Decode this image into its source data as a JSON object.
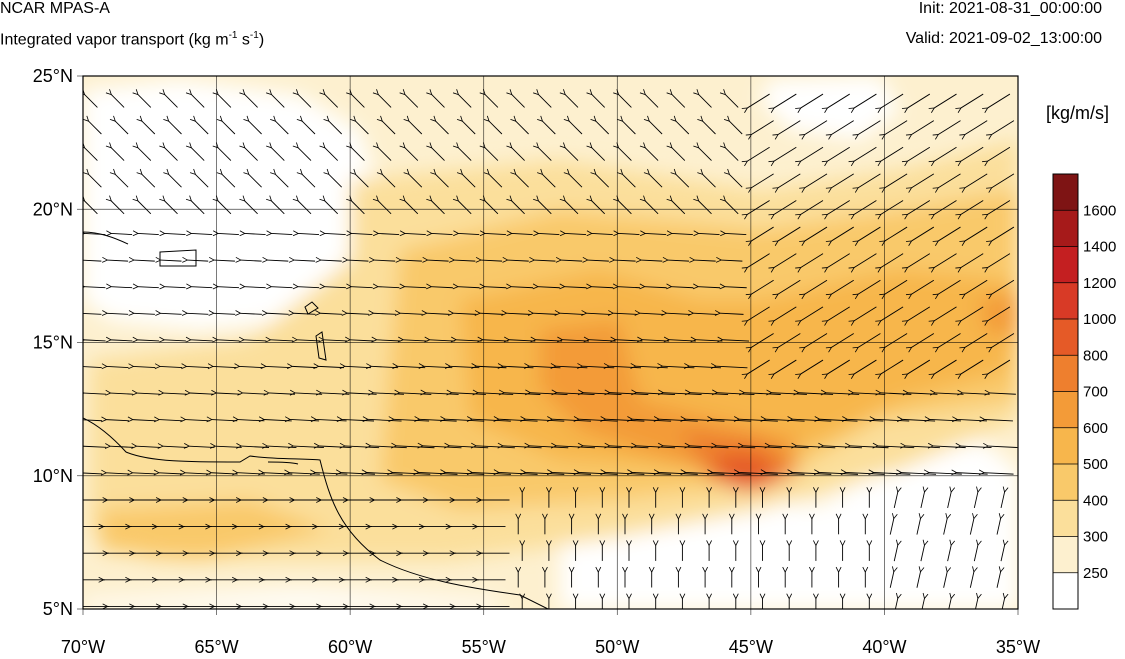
{
  "header": {
    "model": "NCAR MPAS-A",
    "field_prefix": "Integrated vapor transport (kg m",
    "field_exp1": "-1",
    "field_mid": " s",
    "field_exp2": "-1",
    "field_suffix": ")",
    "init": "Init: 2021-08-31_00:00:00",
    "valid": "Valid: 2021-09-02_13:00:00"
  },
  "map": {
    "lon_range": [
      -70,
      -35
    ],
    "lat_range": [
      5,
      25
    ],
    "lat_labels": [
      "25°N",
      "20°N",
      "15°N",
      "10°N",
      "5°N"
    ],
    "lat_values": [
      25,
      20,
      15,
      10,
      5
    ],
    "lon_labels": [
      "70°W",
      "65°W",
      "60°W",
      "55°W",
      "50°W",
      "45°W",
      "40°W",
      "35°W"
    ],
    "lon_values": [
      -70,
      -65,
      -60,
      -55,
      -50,
      -45,
      -40,
      -35
    ],
    "grid": true,
    "arrows_shown": true
  },
  "colorbar": {
    "title": "[kg/m/s]",
    "levels": [
      "250",
      "300",
      "400",
      "500",
      "600",
      "700",
      "800",
      "1000",
      "1200",
      "1400",
      "1600"
    ],
    "colors": [
      "#ffffff",
      "#fdf0cf",
      "#fbdf9b",
      "#f9c96a",
      "#f7b64c",
      "#f39b38",
      "#ee7f2e",
      "#e55a27",
      "#d83a26",
      "#c41f21",
      "#a61a1a",
      "#7e1414"
    ]
  }
}
